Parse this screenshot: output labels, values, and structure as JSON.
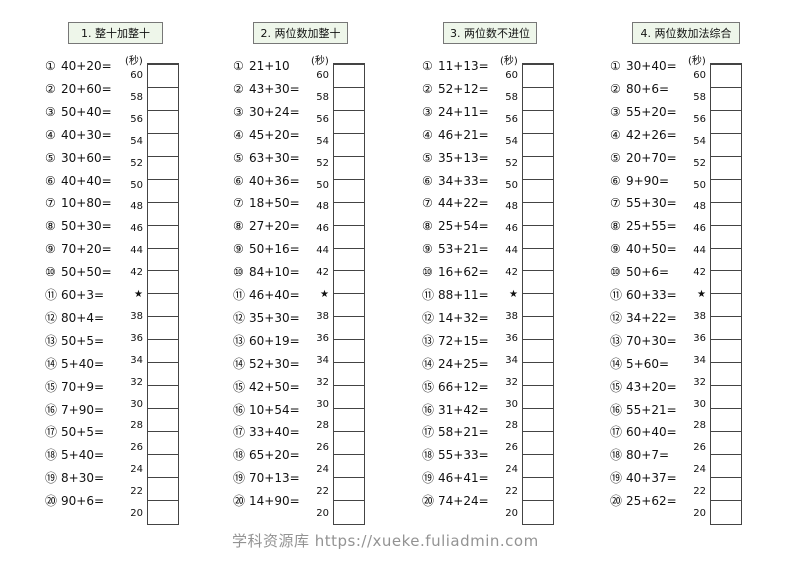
{
  "unit_label": "(秒)",
  "scale": [
    "60",
    "58",
    "56",
    "54",
    "52",
    "50",
    "48",
    "46",
    "44",
    "42",
    "★",
    "38",
    "36",
    "34",
    "32",
    "30",
    "28",
    "26",
    "24",
    "22",
    "20"
  ],
  "numbers": [
    "①",
    "②",
    "③",
    "④",
    "⑤",
    "⑥",
    "⑦",
    "⑧",
    "⑨",
    "⑩",
    "⑪",
    "⑫",
    "⑬",
    "⑭",
    "⑮",
    "⑯",
    "⑰",
    "⑱",
    "⑲",
    "⑳"
  ],
  "columns": [
    {
      "header": "1. 整十加整十",
      "problems": [
        "40+20=",
        "20+60=",
        "50+40=",
        "40+30=",
        "30+60=",
        "40+40=",
        "10+80=",
        "50+30=",
        "70+20=",
        "50+50=",
        "60+3=",
        "80+4=",
        "50+5=",
        "5+40=",
        "70+9=",
        "7+90=",
        "50+5=",
        "5+40=",
        "8+30=",
        "90+6="
      ]
    },
    {
      "header": "2. 两位数加整十",
      "problems": [
        "21+10",
        "43+30=",
        "30+24=",
        "45+20=",
        "63+30=",
        "40+36=",
        "18+50=",
        "27+20=",
        "50+16=",
        "84+10=",
        "46+40=",
        "35+30=",
        "60+19=",
        "52+30=",
        "42+50=",
        "10+54=",
        "33+40=",
        "65+20=",
        "70+13=",
        "14+90="
      ]
    },
    {
      "header": "3. 两位数不进位",
      "problems": [
        "11+13=",
        "52+12=",
        "24+11=",
        "46+21=",
        "35+13=",
        "34+33=",
        "44+22=",
        "25+54=",
        "53+21=",
        "16+62=",
        "88+11=",
        "14+32=",
        "72+15=",
        "24+25=",
        "66+12=",
        "31+42=",
        "58+21=",
        "55+33=",
        "46+41=",
        "74+24="
      ]
    },
    {
      "header": "4. 两位数加法综合",
      "problems": [
        "30+40=",
        "80+6=",
        "55+20=",
        "42+26=",
        "20+70=",
        "9+90=",
        "55+30=",
        "25+55=",
        "40+50=",
        "50+6=",
        "60+33=",
        "34+22=",
        "70+30=",
        "5+60=",
        "43+20=",
        "55+21=",
        "60+40=",
        "80+7=",
        "40+37=",
        "25+62="
      ]
    }
  ],
  "watermark": "学科资源库 https://xueke.fuliadmin.com"
}
